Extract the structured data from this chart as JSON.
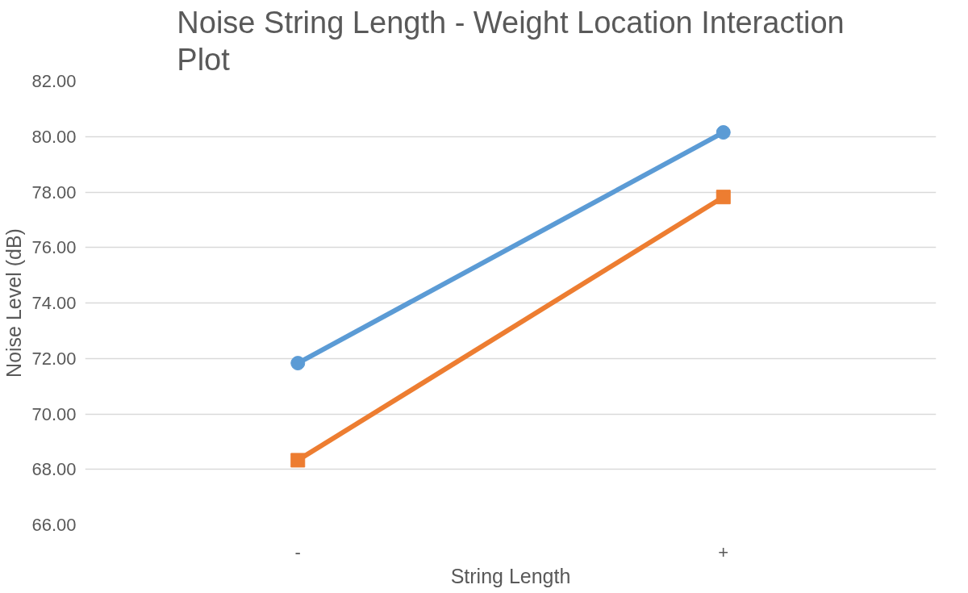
{
  "chart_data": {
    "type": "line",
    "title": "Noise String Length - Weight Location Interaction Plot",
    "xlabel": "String Length",
    "ylabel": "Noise Level (dB)",
    "categories": [
      "-",
      "+"
    ],
    "series": [
      {
        "color": "#5b9bd5",
        "values": [
          71.83,
          80.15
        ],
        "marker": "circle"
      },
      {
        "color": "#ed7d31",
        "values": [
          68.33,
          77.82
        ],
        "marker": "square"
      }
    ],
    "ylim": [
      66,
      82
    ],
    "yticks": [
      {
        "value": 66,
        "label": "66.00"
      },
      {
        "value": 68,
        "label": "68.00"
      },
      {
        "value": 70,
        "label": "70.00"
      },
      {
        "value": 72,
        "label": "72.00"
      },
      {
        "value": 74,
        "label": "74.00"
      },
      {
        "value": 76,
        "label": "76.00"
      },
      {
        "value": 78,
        "label": "78.00"
      },
      {
        "value": 80,
        "label": "80.00"
      },
      {
        "value": 82,
        "label": "82.00"
      }
    ],
    "grid": "y",
    "line_style": "solid"
  }
}
